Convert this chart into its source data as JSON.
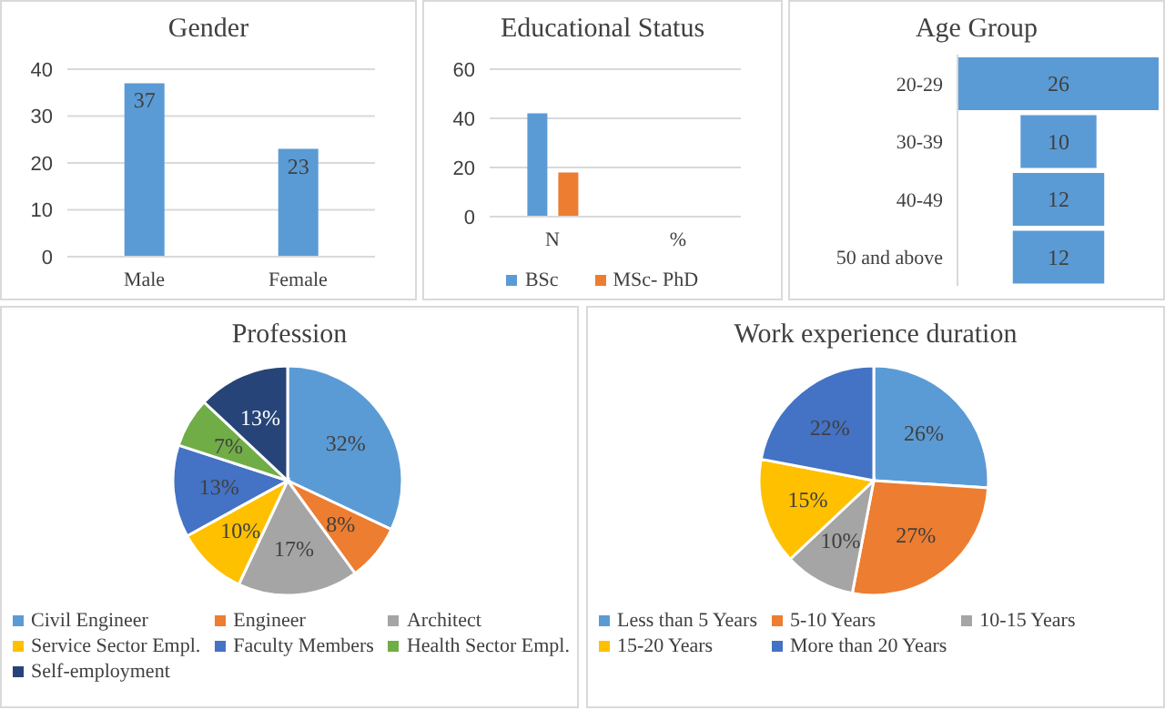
{
  "chart_data": [
    {
      "type": "bar",
      "title": "Gender",
      "categories": [
        "Male",
        "Female"
      ],
      "values": [
        37,
        23
      ],
      "color": "#5b9bd5",
      "ylim": [
        0,
        40
      ],
      "yticks": [
        0,
        10,
        20,
        30,
        40
      ],
      "grid": "y",
      "data_labels": true
    },
    {
      "type": "bar",
      "title": "Educational Status",
      "categories": [
        "N",
        "%"
      ],
      "series": [
        {
          "name": "BSc",
          "color": "#5b9bd5",
          "values": [
            42,
            null
          ]
        },
        {
          "name": "MSc- PhD",
          "color": "#ed7d31",
          "values": [
            18,
            null
          ]
        }
      ],
      "ylim": [
        0,
        60
      ],
      "yticks": [
        0,
        20,
        40,
        60
      ],
      "grid": "y",
      "legend": "bottom"
    },
    {
      "type": "other",
      "title": "Age Group",
      "categories": [
        "20-29",
        "30-39",
        "40-49",
        "50 and above"
      ],
      "values": [
        26,
        10,
        12,
        12
      ],
      "color": "#5b9bd5",
      "data_labels": true
    },
    {
      "type": "pie",
      "title": "Profession",
      "categories": [
        "Civil Engineer",
        "Engineer",
        "Architect",
        "Service Sector Empl.",
        "Faculty Members",
        "Health Sector Empl.",
        "Self-employment"
      ],
      "values": [
        32,
        8,
        17,
        10,
        13,
        7,
        13
      ],
      "value_labels": [
        "32%",
        "8%",
        "17%",
        "10%",
        "13%",
        "7%",
        "13%"
      ],
      "colors": [
        "#5b9bd5",
        "#ed7d31",
        "#a5a5a5",
        "#ffc000",
        "#4472c4",
        "#70ad47",
        "#264478"
      ],
      "legend": "bottom"
    },
    {
      "type": "pie",
      "title": "Work experience duration",
      "categories": [
        "Less than 5 Years",
        "5-10 Years",
        "10-15 Years",
        "15-20 Years",
        "More than 20 Years"
      ],
      "values": [
        26,
        27,
        10,
        15,
        22
      ],
      "value_labels": [
        "26%",
        "27%",
        "10%",
        "15%",
        "22%"
      ],
      "colors": [
        "#5b9bd5",
        "#ed7d31",
        "#a5a5a5",
        "#ffc000",
        "#4472c4"
      ],
      "legend": "bottom"
    }
  ]
}
